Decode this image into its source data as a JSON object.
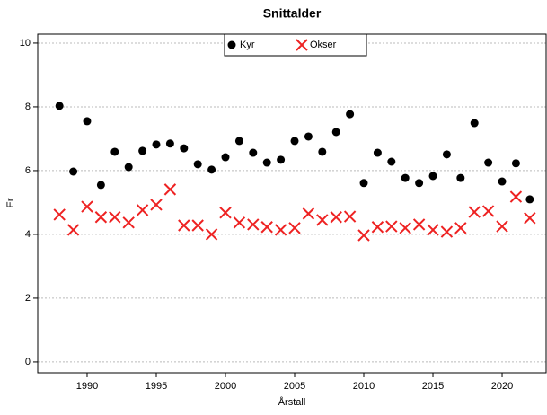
{
  "chart_data": {
    "type": "scatter",
    "title": "Snittalder",
    "x_label": "Årstall",
    "y_label": "Er",
    "x": [
      1988,
      1989,
      1990,
      1991,
      1992,
      1993,
      1994,
      1995,
      1996,
      1997,
      1998,
      1999,
      2000,
      2001,
      2002,
      2003,
      2004,
      2005,
      2006,
      2007,
      2008,
      2009,
      2010,
      2011,
      2012,
      2013,
      2014,
      2015,
      2016,
      2017,
      2018,
      2019,
      2020,
      2021,
      2022
    ],
    "series": [
      {
        "name": "Kyr",
        "color": "#000000",
        "marker": "circle",
        "values": [
          8.03,
          5.97,
          7.55,
          5.55,
          6.59,
          6.11,
          6.62,
          6.82,
          6.85,
          6.7,
          6.2,
          6.03,
          6.42,
          6.93,
          6.56,
          6.25,
          6.34,
          6.93,
          7.07,
          6.59,
          7.21,
          7.77,
          5.61,
          6.56,
          6.28,
          5.77,
          5.61,
          5.83,
          6.51,
          5.77,
          7.49,
          6.25,
          5.66,
          6.23,
          5.1
        ]
      },
      {
        "name": "Okser",
        "color": "#ee2222",
        "marker": "x",
        "values": [
          4.62,
          4.14,
          4.87,
          4.54,
          4.54,
          4.37,
          4.76,
          4.93,
          5.41,
          4.28,
          4.28,
          4.0,
          4.68,
          4.37,
          4.31,
          4.23,
          4.14,
          4.2,
          4.65,
          4.45,
          4.54,
          4.56,
          3.97,
          4.23,
          4.25,
          4.2,
          4.31,
          4.14,
          4.08,
          4.2,
          4.7,
          4.73,
          4.25,
          5.18,
          4.51
        ]
      }
    ],
    "xlim": [
      1986.43,
      2023.18
    ],
    "xticks": [
      1990,
      1995,
      2000,
      2005,
      2010,
      2015,
      2020
    ],
    "ylim": [
      -0.34,
      10.28
    ],
    "yticks": [
      0,
      2,
      4,
      6,
      8,
      10
    ],
    "grid": true,
    "legend": "top"
  }
}
